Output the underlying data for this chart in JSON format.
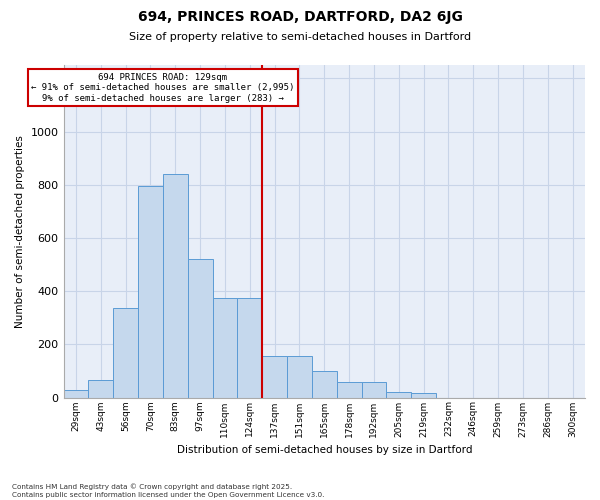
{
  "title1": "694, PRINCES ROAD, DARTFORD, DA2 6JG",
  "title2": "Size of property relative to semi-detached houses in Dartford",
  "xlabel": "Distribution of semi-detached houses by size in Dartford",
  "ylabel": "Number of semi-detached properties",
  "categories": [
    "29sqm",
    "43sqm",
    "56sqm",
    "70sqm",
    "83sqm",
    "97sqm",
    "110sqm",
    "124sqm",
    "137sqm",
    "151sqm",
    "165sqm",
    "178sqm",
    "192sqm",
    "205sqm",
    "219sqm",
    "232sqm",
    "246sqm",
    "259sqm",
    "273sqm",
    "286sqm",
    "300sqm"
  ],
  "values": [
    28,
    65,
    335,
    795,
    840,
    520,
    375,
    375,
    155,
    155,
    100,
    60,
    60,
    20,
    18,
    0,
    0,
    0,
    0,
    0,
    0
  ],
  "bar_color": "#c5d8ed",
  "bar_edge_color": "#5b9bd5",
  "grid_color": "#c8d4e8",
  "bg_color": "#e8eef8",
  "vline_color": "#cc0000",
  "annotation_text": "694 PRINCES ROAD: 129sqm\n← 91% of semi-detached houses are smaller (2,995)\n9% of semi-detached houses are larger (283) →",
  "annotation_box_color": "#cc0000",
  "footer": "Contains HM Land Registry data © Crown copyright and database right 2025.\nContains public sector information licensed under the Open Government Licence v3.0.",
  "ylim": [
    0,
    1250
  ],
  "yticks": [
    0,
    200,
    400,
    600,
    800,
    1000,
    1200
  ]
}
